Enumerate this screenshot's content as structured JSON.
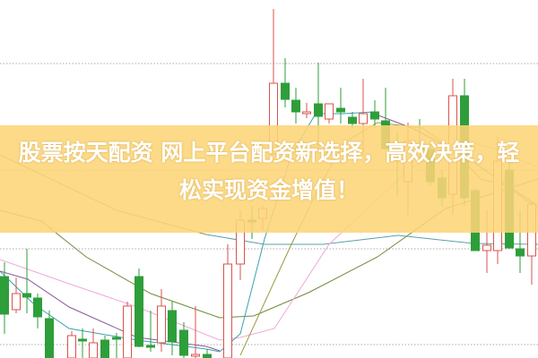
{
  "banner": {
    "line1": "股票按天配资 网上平台配资新选择，高效决策，轻",
    "line2": "松实现资金增值！",
    "background_color": "#fcd578",
    "text_color": "#ffffff"
  },
  "chart": {
    "type": "candlestick",
    "up_color": "#d9534f",
    "down_color": "#2e9e3a",
    "grid": "dotted horizontal"
  }
}
